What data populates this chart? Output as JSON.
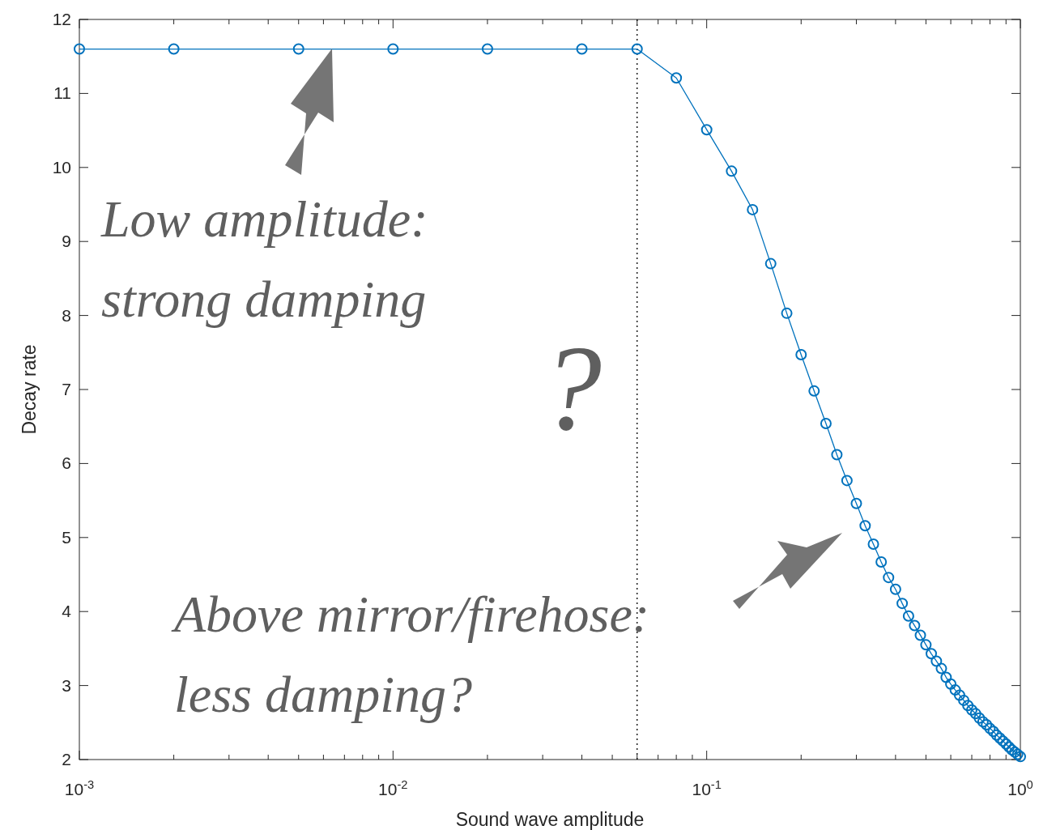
{
  "chart_data": {
    "type": "line",
    "xlabel": "Sound wave amplitude",
    "ylabel": "Decay rate",
    "log": "x",
    "grid": false,
    "marker": "circle",
    "line_style": "solid",
    "xlim": [
      0.001,
      1
    ],
    "ylim": [
      2,
      12
    ],
    "xticks": [
      {
        "value": 0.001,
        "label": "10$^{-3}$"
      },
      {
        "value": 0.002,
        "label": null
      },
      {
        "value": 0.003,
        "label": null
      },
      {
        "value": 0.004,
        "label": null
      },
      {
        "value": 0.005,
        "label": null
      },
      {
        "value": 0.006,
        "label": null
      },
      {
        "value": 0.007,
        "label": null
      },
      {
        "value": 0.008,
        "label": null
      },
      {
        "value": 0.009,
        "label": null
      },
      {
        "value": 0.01,
        "label": "10$^{-2}$"
      },
      {
        "value": 0.02,
        "label": null
      },
      {
        "value": 0.03,
        "label": null
      },
      {
        "value": 0.04,
        "label": null
      },
      {
        "value": 0.05,
        "label": null
      },
      {
        "value": 0.06,
        "label": null
      },
      {
        "value": 0.07,
        "label": null
      },
      {
        "value": 0.08,
        "label": null
      },
      {
        "value": 0.09,
        "label": null
      },
      {
        "value": 0.1,
        "label": "10$^{-1}$"
      },
      {
        "value": 0.2,
        "label": null
      },
      {
        "value": 0.3,
        "label": null
      },
      {
        "value": 0.4,
        "label": null
      },
      {
        "value": 0.5,
        "label": null
      },
      {
        "value": 0.6,
        "label": null
      },
      {
        "value": 0.7,
        "label": null
      },
      {
        "value": 0.8,
        "label": null
      },
      {
        "value": 0.9,
        "label": null
      },
      {
        "value": 1,
        "label": "10$^{0}$"
      }
    ],
    "yticks": [
      2,
      3,
      4,
      5,
      6,
      7,
      8,
      9,
      10,
      11,
      12
    ],
    "x": [
      0.001,
      0.002,
      0.005,
      0.01,
      0.02,
      0.04,
      0.06,
      0.08,
      0.1,
      0.12,
      0.14,
      0.16,
      0.18,
      0.2,
      0.22,
      0.24,
      0.26,
      0.28,
      0.3,
      0.32,
      0.34,
      0.36,
      0.38,
      0.4,
      0.42,
      0.44,
      0.46,
      0.48,
      0.5,
      0.52,
      0.54,
      0.56,
      0.58,
      0.6,
      0.62,
      0.64,
      0.66,
      0.68,
      0.7,
      0.72,
      0.74,
      0.76,
      0.78,
      0.8,
      0.82,
      0.84,
      0.86,
      0.88,
      0.9,
      0.92,
      0.94,
      0.96,
      0.98,
      1
    ],
    "series": [
      {
        "color": "#0072bd",
        "values": [
          11.6,
          11.6,
          11.6,
          11.6,
          11.6,
          11.6,
          11.6,
          11.21,
          10.51,
          9.95,
          9.43,
          8.7,
          8.03,
          7.47,
          6.98,
          6.54,
          6.12,
          5.77,
          5.46,
          5.16,
          4.91,
          4.67,
          4.46,
          4.3,
          4.11,
          3.94,
          3.81,
          3.68,
          3.55,
          3.43,
          3.33,
          3.23,
          3.11,
          3.02,
          2.94,
          2.87,
          2.8,
          2.73,
          2.67,
          2.62,
          2.56,
          2.51,
          2.47,
          2.42,
          2.38,
          2.33,
          2.29,
          2.25,
          2.21,
          2.17,
          2.13,
          2.1,
          2.07,
          2.04
        ]
      }
    ],
    "ref_lines": [
      {
        "axis": "x",
        "value": 0.06,
        "color": "#000000",
        "line_style": "dotted"
      }
    ],
    "annotations": [
      "Low amplitude:\nstrong damping",
      "?",
      "Above mirror/firehose:\nless damping?"
    ]
  }
}
